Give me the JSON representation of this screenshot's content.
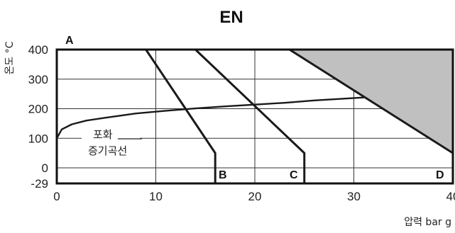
{
  "chart_data": {
    "type": "line",
    "title": "EN",
    "xlabel": "압력 bar g",
    "ylabel": "온도 °C",
    "xlim": [
      0,
      40
    ],
    "x_ticks": [
      0,
      10,
      20,
      30,
      40
    ],
    "y_ticks": [
      -29,
      0,
      100,
      200,
      300,
      400
    ],
    "y_tick_labels": [
      "-29",
      "0",
      "100",
      "200",
      "300",
      "400"
    ],
    "ylim": [
      -29,
      400
    ],
    "grid": true,
    "corner_labels": [
      "A",
      "B",
      "C",
      "D"
    ],
    "saturation_annotation": [
      "포화",
      "증기곡선"
    ],
    "series": [
      {
        "name": "B",
        "x": [
          9,
          16,
          16
        ],
        "y": [
          400,
          50,
          -29
        ]
      },
      {
        "name": "C",
        "x": [
          14,
          25,
          25
        ],
        "y": [
          400,
          50,
          -29
        ]
      },
      {
        "name": "D",
        "x": [
          23.5,
          40
        ],
        "y": [
          400,
          50
        ]
      },
      {
        "name": "포화 증기곡선",
        "x": [
          0,
          0.5,
          1.5,
          3,
          5,
          8,
          11,
          14,
          17,
          20,
          23,
          26,
          29,
          31
        ],
        "y": [
          100,
          130,
          147,
          160,
          170,
          184,
          193,
          201,
          208,
          214,
          220,
          228,
          234,
          238
        ]
      }
    ],
    "shaded_region": {
      "x": [
        23.5,
        40,
        40
      ],
      "y": [
        400,
        400,
        50
      ],
      "color": "#c0c0c0"
    }
  }
}
